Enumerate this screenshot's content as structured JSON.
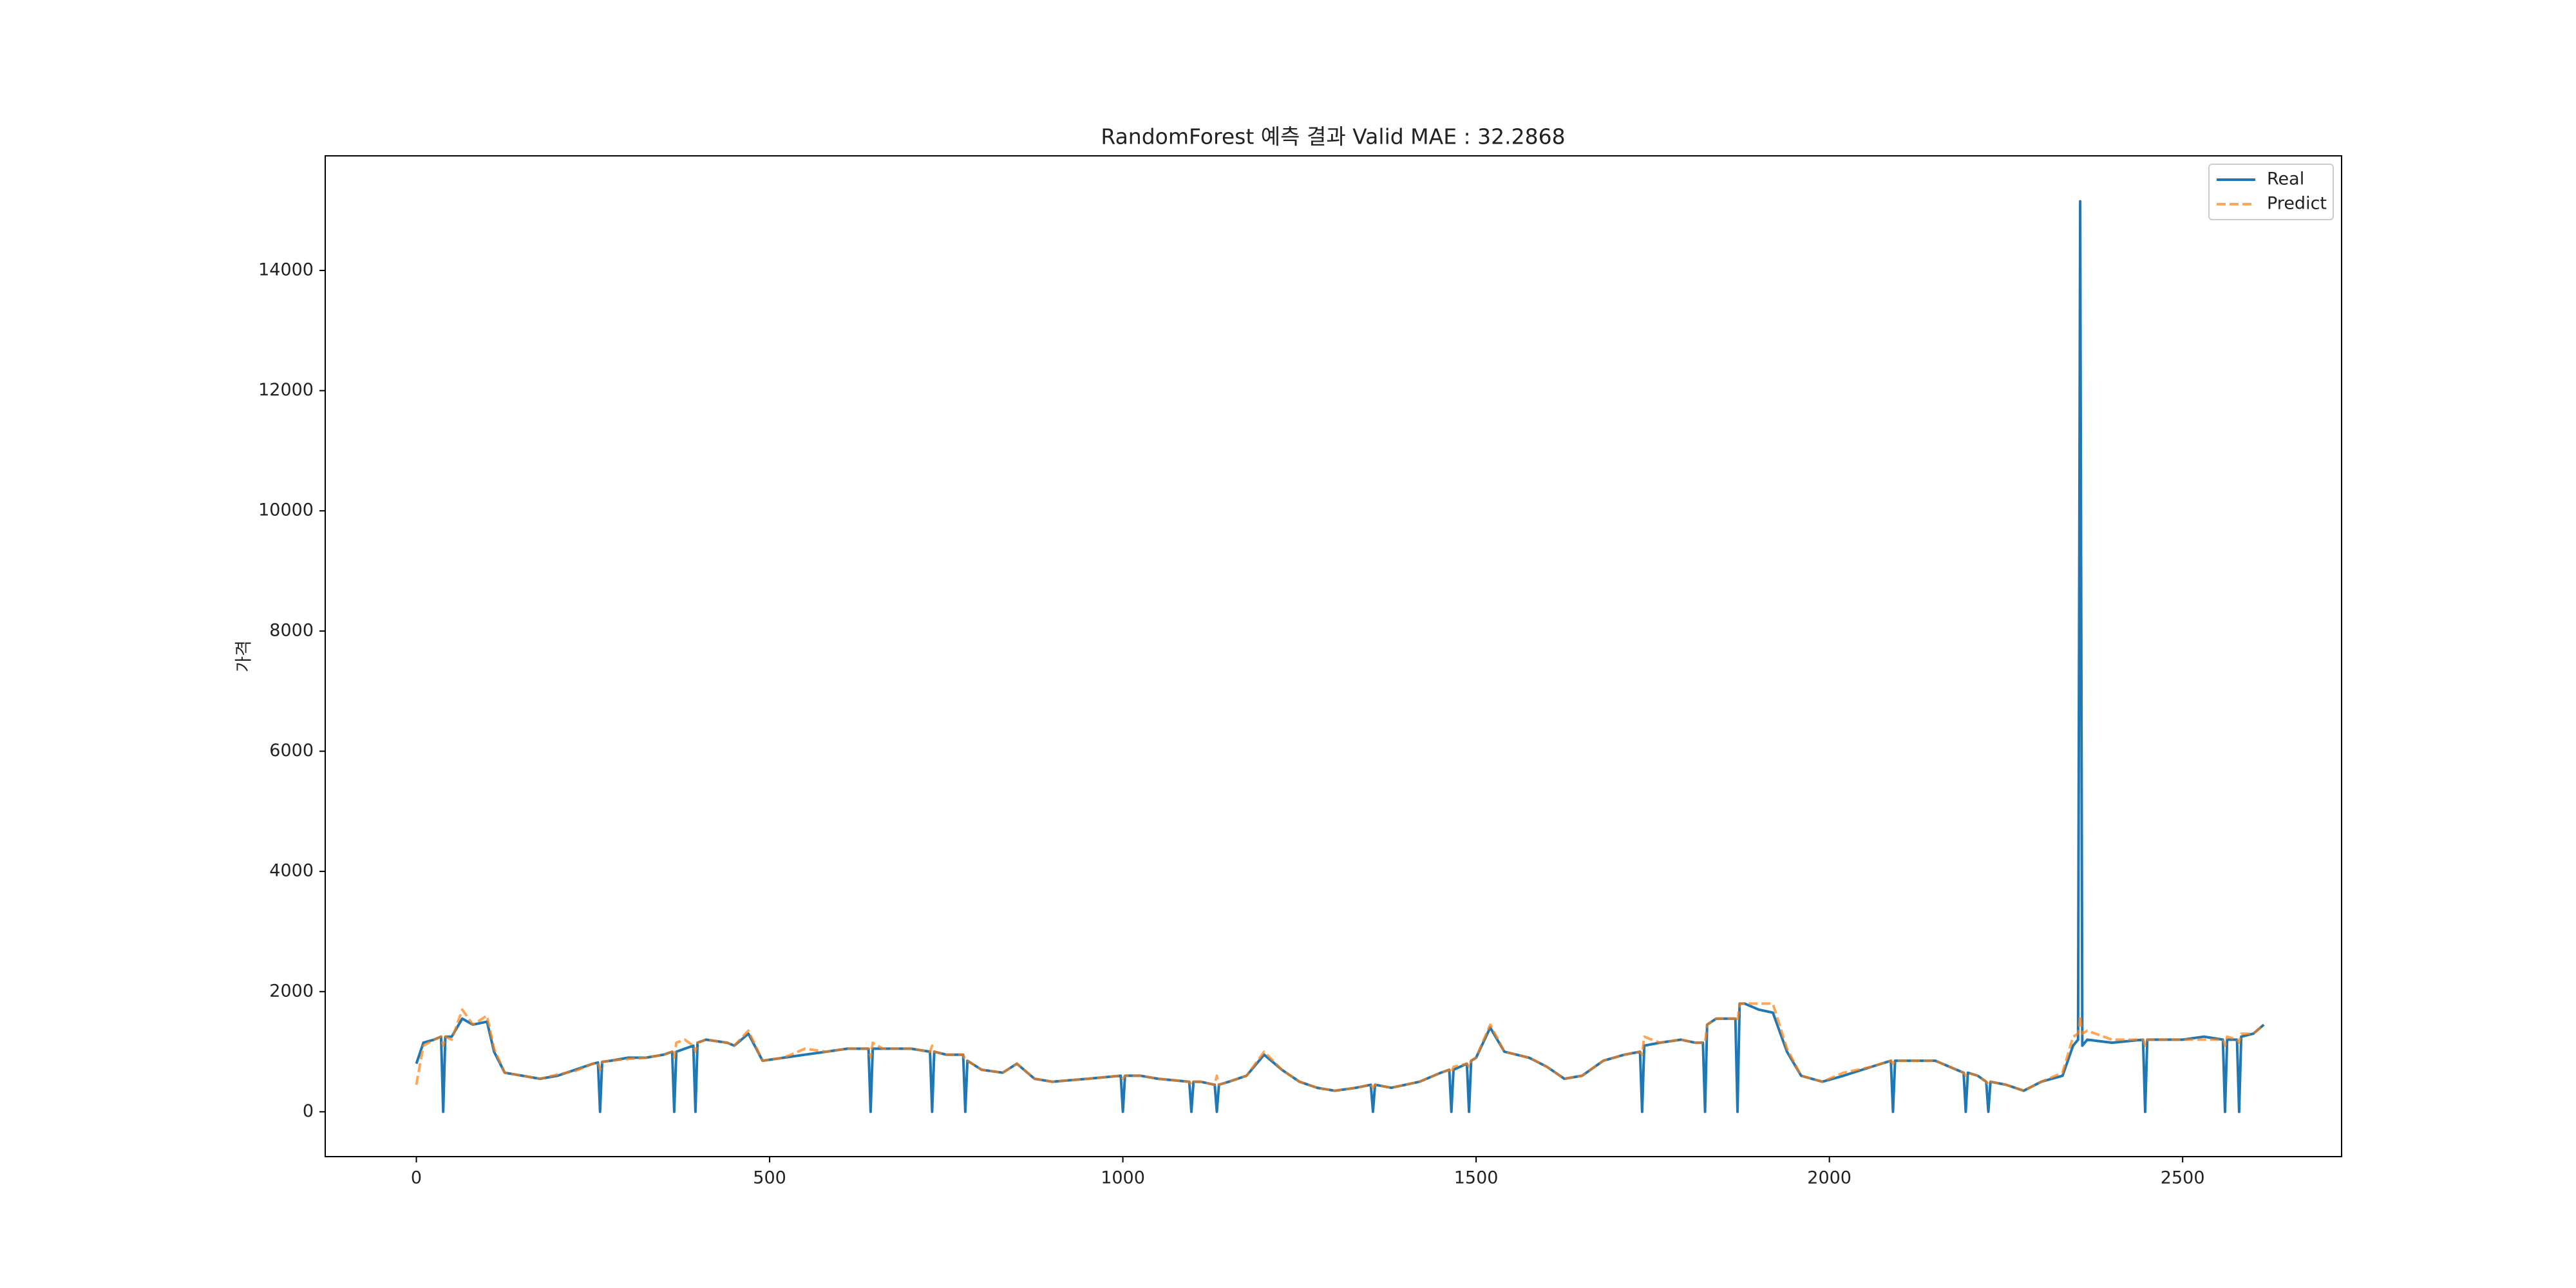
{
  "chart_data": {
    "type": "line",
    "title": "RandomForest 예측 결과 Valid MAE : 32.2868",
    "ylabel": "가격",
    "x": [
      0,
      10,
      25,
      35,
      38,
      41,
      50,
      65,
      80,
      100,
      110,
      125,
      150,
      175,
      200,
      225,
      250,
      257,
      260,
      263,
      275,
      300,
      325,
      350,
      362,
      365,
      368,
      380,
      392,
      395,
      398,
      410,
      440,
      450,
      470,
      490,
      520,
      550,
      580,
      610,
      640,
      643,
      646,
      660,
      700,
      727,
      730,
      733,
      750,
      774,
      777,
      780,
      800,
      830,
      850,
      875,
      900,
      950,
      997,
      1000,
      1003,
      1025,
      1050,
      1094,
      1097,
      1100,
      1110,
      1130,
      1133,
      1136,
      1150,
      1175,
      1200,
      1225,
      1250,
      1275,
      1300,
      1330,
      1351,
      1354,
      1357,
      1380,
      1420,
      1450,
      1462,
      1465,
      1468,
      1487,
      1490,
      1493,
      1500,
      1520,
      1540,
      1575,
      1600,
      1625,
      1650,
      1680,
      1710,
      1732,
      1735,
      1738,
      1760,
      1790,
      1810,
      1821,
      1824,
      1827,
      1840,
      1867,
      1870,
      1873,
      1880,
      1900,
      1920,
      1940,
      1960,
      1990,
      2020,
      2060,
      2087,
      2090,
      2093,
      2110,
      2150,
      2180,
      2190,
      2193,
      2196,
      2210,
      2222,
      2225,
      2228,
      2250,
      2275,
      2300,
      2330,
      2345,
      2352,
      2355,
      2358,
      2365,
      2400,
      2444,
      2447,
      2450,
      2460,
      2500,
      2530,
      2557,
      2560,
      2563,
      2577,
      2580,
      2583,
      2600,
      2615
    ],
    "series": [
      {
        "name": "Real",
        "color": "#1f77b4",
        "dashed": false,
        "values": [
          800,
          1150,
          1200,
          1250,
          0,
          1250,
          1250,
          1550,
          1450,
          1500,
          1000,
          650,
          600,
          550,
          600,
          700,
          800,
          820,
          0,
          830,
          850,
          900,
          900,
          950,
          1000,
          0,
          1000,
          1050,
          1100,
          0,
          1150,
          1200,
          1150,
          1100,
          1300,
          850,
          900,
          950,
          1000,
          1050,
          1050,
          0,
          1050,
          1050,
          1050,
          1000,
          0,
          1000,
          950,
          950,
          0,
          850,
          700,
          650,
          800,
          550,
          500,
          550,
          600,
          0,
          600,
          600,
          550,
          500,
          0,
          500,
          500,
          450,
          0,
          450,
          500,
          600,
          950,
          700,
          500,
          400,
          350,
          400,
          450,
          0,
          450,
          400,
          500,
          650,
          700,
          0,
          700,
          800,
          0,
          850,
          900,
          1400,
          1000,
          900,
          750,
          550,
          600,
          850,
          950,
          1000,
          0,
          1100,
          1150,
          1200,
          1150,
          1150,
          0,
          1450,
          1550,
          1550,
          0,
          1800,
          1800,
          1700,
          1650,
          1000,
          600,
          500,
          600,
          750,
          850,
          0,
          850,
          850,
          850,
          700,
          650,
          0,
          650,
          600,
          500,
          0,
          500,
          450,
          350,
          500,
          600,
          1100,
          1200,
          15150,
          1100,
          1200,
          1150,
          1200,
          0,
          1200,
          1200,
          1200,
          1250,
          1200,
          0,
          1200,
          1200,
          0,
          1250,
          1300,
          1450
        ]
      },
      {
        "name": "Predict",
        "color": "#ff7f0e",
        "dashed": true,
        "values": [
          450,
          1100,
          1200,
          1250,
          1100,
          1250,
          1200,
          1700,
          1450,
          1600,
          1050,
          650,
          600,
          550,
          620,
          680,
          800,
          820,
          700,
          830,
          850,
          880,
          900,
          950,
          1000,
          900,
          1150,
          1200,
          1100,
          1000,
          1150,
          1200,
          1150,
          1100,
          1350,
          850,
          900,
          1050,
          1000,
          1050,
          1050,
          900,
          1150,
          1050,
          1050,
          1000,
          1100,
          1000,
          950,
          950,
          850,
          850,
          700,
          650,
          800,
          550,
          500,
          550,
          600,
          550,
          600,
          600,
          550,
          500,
          450,
          500,
          500,
          450,
          600,
          450,
          500,
          600,
          1000,
          700,
          500,
          400,
          350,
          400,
          450,
          400,
          450,
          400,
          500,
          650,
          700,
          650,
          750,
          800,
          750,
          850,
          900,
          1450,
          1000,
          900,
          750,
          550,
          600,
          850,
          950,
          1000,
          950,
          1250,
          1150,
          1200,
          1150,
          1150,
          1150,
          1450,
          1550,
          1550,
          1500,
          1800,
          1800,
          1800,
          1800,
          1050,
          600,
          500,
          650,
          750,
          850,
          800,
          850,
          850,
          850,
          700,
          650,
          600,
          650,
          600,
          500,
          450,
          500,
          450,
          350,
          500,
          650,
          1250,
          1300,
          1600,
          1300,
          1350,
          1200,
          1200,
          1100,
          1200,
          1200,
          1200,
          1200,
          1200,
          1100,
          1250,
          1200,
          1150,
          1300,
          1300,
          1450
        ]
      }
    ],
    "xlim": [
      -129,
      2725
    ],
    "ylim": [
      -746,
      15907
    ],
    "xticks": [
      0,
      500,
      1000,
      1500,
      2000,
      2500
    ],
    "yticks": [
      0,
      2000,
      4000,
      6000,
      8000,
      10000,
      12000,
      14000
    ],
    "legend": "upper right"
  }
}
